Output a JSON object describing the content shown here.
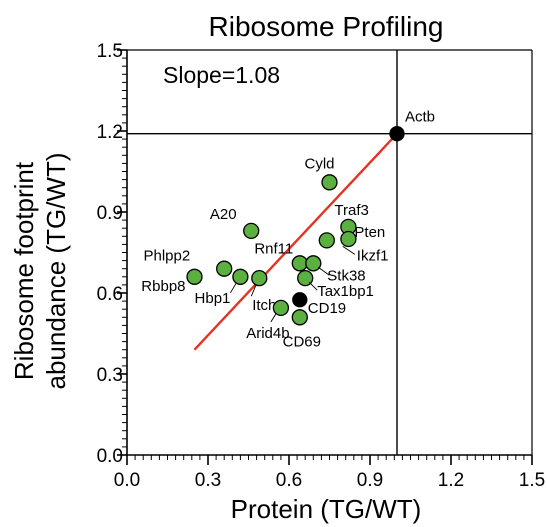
{
  "chart_data": {
    "type": "scatter",
    "title": "Ribosome Profiling",
    "xlabel": "Protein (TG/WT)",
    "ylabel_line1": "Ribosome footprint",
    "ylabel_line2": "abundance (TG/WT)",
    "annotation": "Slope=1.08",
    "xlim": [
      0.0,
      1.5
    ],
    "ylim": [
      0.0,
      1.5
    ],
    "x_ticks": [
      "0.0",
      "0.3",
      "0.6",
      "0.9",
      "1.2",
      "1.5"
    ],
    "y_ticks": [
      "0.0",
      "0.3",
      "0.6",
      "0.9",
      "1.2",
      "1.5"
    ],
    "reference_point": {
      "x": 1.0,
      "y": 1.19
    },
    "fit_line": {
      "color": "#e53323",
      "x": [
        0.25,
        1.0
      ],
      "y": [
        0.39,
        1.19
      ]
    },
    "colors": {
      "green": "#5bb040",
      "black": "#000000"
    },
    "points": [
      {
        "label": "Actb",
        "x": 1.0,
        "y": 1.19,
        "color": "black"
      },
      {
        "label": "Cyld",
        "x": 0.75,
        "y": 1.01,
        "color": "green"
      },
      {
        "label": "A20",
        "x": 0.46,
        "y": 0.83,
        "color": "green"
      },
      {
        "label": "Traf3",
        "x": 0.82,
        "y": 0.845,
        "color": "green"
      },
      {
        "label": "Pten",
        "x": 0.82,
        "y": 0.8,
        "color": "green"
      },
      {
        "label": "Ikzf1",
        "x": 0.74,
        "y": 0.795,
        "color": "green"
      },
      {
        "label": "Phlpp2",
        "x": 0.36,
        "y": 0.69,
        "color": "green"
      },
      {
        "label": "Rnf11",
        "x": 0.64,
        "y": 0.71,
        "color": "green"
      },
      {
        "label": "Stk38",
        "x": 0.69,
        "y": 0.71,
        "color": "green"
      },
      {
        "label": "Tax1bp1",
        "x": 0.66,
        "y": 0.655,
        "color": "green"
      },
      {
        "label": "Rbbp8",
        "x": 0.25,
        "y": 0.66,
        "color": "green"
      },
      {
        "label": "Hbp1",
        "x": 0.42,
        "y": 0.66,
        "color": "green"
      },
      {
        "label": "Itch",
        "x": 0.49,
        "y": 0.655,
        "color": "green"
      },
      {
        "label": "CD19",
        "x": 0.64,
        "y": 0.575,
        "color": "black"
      },
      {
        "label": "Arid4b",
        "x": 0.57,
        "y": 0.545,
        "color": "green"
      },
      {
        "label": "CD69",
        "x": 0.64,
        "y": 0.51,
        "color": "green"
      }
    ]
  }
}
